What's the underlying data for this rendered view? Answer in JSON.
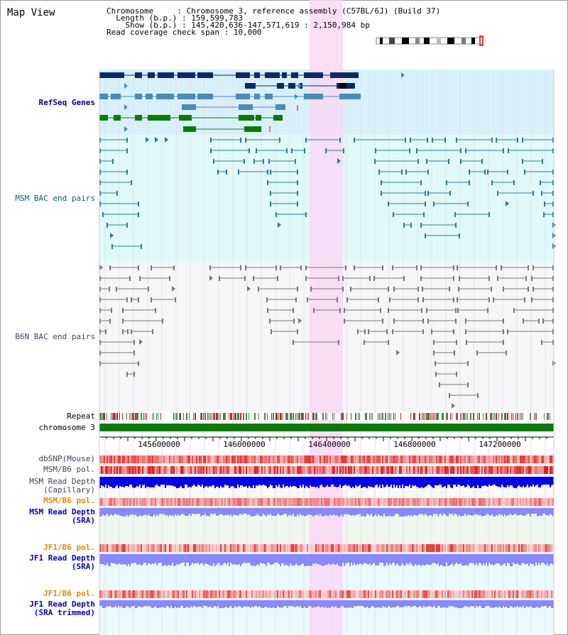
{
  "title": "Map View",
  "info": {
    "chromosome_label": "Chromosome",
    "chromosome_value": "Chromosome 3, reference assembly (C57BL/6J) (Build 37)",
    "length_label": "Length (b.p.)",
    "length_value": "159,599,783",
    "show_label": "Show (b.p.)",
    "show_value": "145,420,636-147,571,619 : 2,150,984 bp",
    "coverage_label": "Read coverage check span",
    "coverage_value": "10,000"
  },
  "tracks": {
    "refseq": "RefSeq Genes",
    "msm_bac": "MSM BAC end pairs",
    "b6n_bac": "B6N BAC end pairs",
    "repeat": "Repeat",
    "chromosome": "chromosome 3",
    "dbsnp": "dbSNP(Mouse)",
    "msm_pol": "MSM/B6 pol.",
    "msm_depth_cap_1": "MSM Read Depth",
    "msm_depth_cap_2": "(Capillary)",
    "msm_pol_sra": "MSM/B6 pol.",
    "msm_depth_sra_1": "MSM Read Depth",
    "msm_depth_sra_2": "(SRA)",
    "jf1_pol": "JF1/B6 pol.",
    "jf1_depth_1": "JF1 Read Depth",
    "jf1_depth_2": "(SRA)",
    "jf1_pol_trim": "JF1/B6 pol.",
    "jf1_depth_trim_1": "JF1 Read Depth",
    "jf1_depth_trim_2": "(SRA trimmed)"
  },
  "axis_ticks": [
    "145600000",
    "146000000",
    "146400000",
    "146800000",
    "147200000"
  ],
  "colors": {
    "highlight": "#f8d8f4",
    "refseq_bg": "#d8f0fa",
    "msm_bg": "#e0fafa",
    "gene_dark": "#0a2a66",
    "gene_mid": "#4a8ab8",
    "gene_green": "#0a7a0a",
    "bac_teal": "#2a7a9a",
    "bac_gray": "#777",
    "chrom_green": "#0a7a0a",
    "red": "#e03030",
    "depth_blue": "#0000ee",
    "depth_light": "#8888ff"
  }
}
